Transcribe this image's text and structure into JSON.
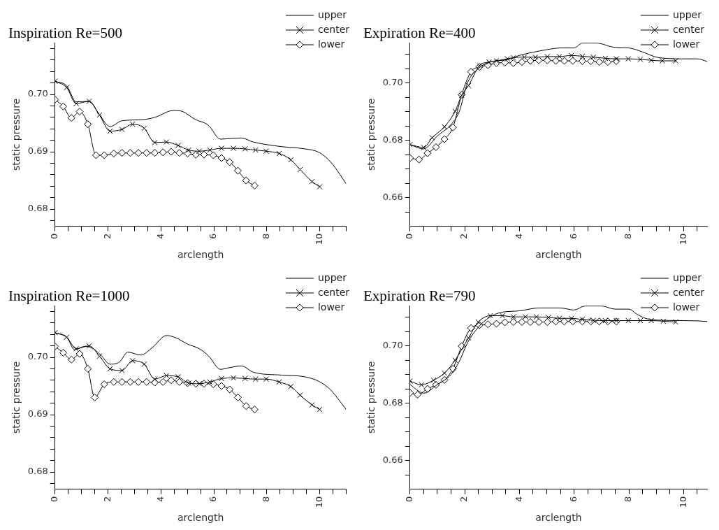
{
  "chart_data": [
    {
      "type": "line",
      "title": "Inspiration Re=500",
      "xlabel": "arclength",
      "ylabel": "static pressure",
      "legend": "top right",
      "xlim": [
        0,
        11
      ],
      "ylim": [
        0.677,
        0.709
      ],
      "xticks": [
        0,
        {
          "value": 0.5,
          "label": null
        },
        {
          "value": 1,
          "label": null
        },
        {
          "value": 1.5,
          "label": null
        },
        2,
        {
          "value": 2.5,
          "label": null
        },
        {
          "value": 3,
          "label": null
        },
        {
          "value": 3.5,
          "label": null
        },
        4,
        {
          "value": 4.5,
          "label": null
        },
        {
          "value": 5,
          "label": null
        },
        {
          "value": 5.5,
          "label": null
        },
        6,
        {
          "value": 6.5,
          "label": null
        },
        {
          "value": 7,
          "label": null
        },
        {
          "value": 7.5,
          "label": null
        },
        8,
        {
          "value": 8.5,
          "label": null
        },
        {
          "value": 9,
          "label": null
        },
        {
          "value": 9.5,
          "label": null
        },
        10,
        {
          "value": 10.5,
          "label": null
        },
        {
          "value": 11,
          "label": null
        }
      ],
      "yticks": [
        {
          "value": 0.678,
          "label": null
        },
        0.68,
        {
          "value": 0.682,
          "label": null
        },
        {
          "value": 0.684,
          "label": null
        },
        {
          "value": 0.686,
          "label": null
        },
        {
          "value": 0.688,
          "label": null
        },
        0.69,
        {
          "value": 0.692,
          "label": null
        },
        {
          "value": 0.694,
          "label": null
        },
        {
          "value": 0.696,
          "label": null
        },
        {
          "value": 0.698,
          "label": null
        },
        {
          "value": 0.7,
          "label": "0.70"
        },
        {
          "value": 0.702,
          "label": null
        },
        {
          "value": 0.704,
          "label": null
        },
        {
          "value": 0.706,
          "label": null
        },
        {
          "value": 0.708,
          "label": null
        }
      ],
      "series": [
        {
          "name": "upper",
          "color": "#000000",
          "marker": "none",
          "x": [
            0,
            0.44,
            0.8,
            1.29,
            1.64,
            2.08,
            2.53,
            3.32,
            3.77,
            4.48,
            4.83,
            5.27,
            5.8,
            6.25,
            6.6,
            7.04,
            7.49,
            8.55,
            9.44,
            9.97,
            10.42,
            10.77,
            11
          ],
          "values": [
            0.7023,
            0.7015,
            0.6987,
            0.6988,
            0.6967,
            0.6944,
            0.6954,
            0.6956,
            0.696,
            0.6972,
            0.697,
            0.6957,
            0.6946,
            0.6922,
            0.6923,
            0.6924,
            0.6917,
            0.6909,
            0.6905,
            0.6899,
            0.6882,
            0.686,
            0.6844
          ]
        },
        {
          "name": "center",
          "color": "#000000",
          "marker": "cross",
          "x": [
            0,
            0.44,
            0.8,
            1.29,
            1.68,
            2.08,
            2.53,
            2.93,
            3.37,
            3.77,
            4.21,
            4.65,
            5.05,
            5.45,
            5.85,
            6.29,
            6.74,
            7.18,
            7.58,
            7.98,
            8.47,
            8.91,
            9.26,
            9.71,
            10
          ],
          "values": [
            0.7023,
            0.7012,
            0.6984,
            0.6988,
            0.6964,
            0.6936,
            0.6939,
            0.6948,
            0.6941,
            0.6916,
            0.6917,
            0.6911,
            0.6903,
            0.6901,
            0.6903,
            0.6906,
            0.6906,
            0.6905,
            0.6903,
            0.6901,
            0.6897,
            0.6886,
            0.6869,
            0.6848,
            0.6839
          ]
        },
        {
          "name": "lower",
          "color": "#000000",
          "marker": "diamond",
          "x": [
            0,
            0.31,
            0.62,
            0.93,
            1.24,
            1.55,
            1.86,
            2.22,
            2.53,
            2.84,
            3.15,
            3.46,
            3.77,
            4.08,
            4.39,
            4.7,
            5.01,
            5.32,
            5.63,
            5.98,
            6.29,
            6.6,
            6.91,
            7.22,
            7.54
          ],
          "values": [
            0.6991,
            0.6979,
            0.6959,
            0.697,
            0.6948,
            0.6894,
            0.6894,
            0.6897,
            0.6898,
            0.6898,
            0.6898,
            0.6898,
            0.6898,
            0.6899,
            0.69,
            0.6898,
            0.6897,
            0.6895,
            0.6895,
            0.6894,
            0.6889,
            0.6882,
            0.6867,
            0.685,
            0.6841
          ]
        }
      ]
    },
    {
      "type": "line",
      "title": "Expiration Re=400",
      "xlabel": "arclength",
      "ylabel": "static pressure",
      "legend": "top right",
      "xlim": [
        0,
        10.86
      ],
      "ylim": [
        0.65,
        0.714
      ],
      "xticks": [
        0,
        {
          "value": 0.5,
          "label": null
        },
        {
          "value": 1,
          "label": null
        },
        {
          "value": 1.5,
          "label": null
        },
        2,
        {
          "value": 2.5,
          "label": null
        },
        {
          "value": 3,
          "label": null
        },
        {
          "value": 3.5,
          "label": null
        },
        4,
        {
          "value": 4.5,
          "label": null
        },
        {
          "value": 5,
          "label": null
        },
        {
          "value": 5.5,
          "label": null
        },
        6,
        {
          "value": 6.5,
          "label": null
        },
        {
          "value": 7,
          "label": null
        },
        {
          "value": 7.5,
          "label": null
        },
        8,
        {
          "value": 8.5,
          "label": null
        },
        {
          "value": 9,
          "label": null
        },
        {
          "value": 9.5,
          "label": null
        },
        10,
        {
          "value": 10.5,
          "label": null
        }
      ],
      "yticks": [
        {
          "value": 0.655,
          "label": null
        },
        0.66,
        {
          "value": 0.665,
          "label": null
        },
        {
          "value": 0.67,
          "label": null
        },
        {
          "value": 0.675,
          "label": null
        },
        0.68,
        {
          "value": 0.685,
          "label": null
        },
        {
          "value": 0.69,
          "label": null
        },
        {
          "value": 0.695,
          "label": null
        },
        {
          "value": 0.7,
          "label": "0.70"
        },
        {
          "value": 0.705,
          "label": null
        },
        {
          "value": 0.71,
          "label": null
        }
      ],
      "series": [
        {
          "name": "upper",
          "color": "#000000",
          "marker": "none",
          "x": [
            0,
            0.5,
            1,
            1.5,
            1.8,
            2.1,
            2.5,
            3,
            3.5,
            4,
            4.5,
            5,
            5.5,
            6,
            6.3,
            6.8,
            7.5,
            8,
            8.5,
            9,
            9.5,
            10,
            10.5,
            10.86
          ],
          "values": [
            0.6785,
            0.677,
            0.6815,
            0.6855,
            0.69,
            0.7,
            0.705,
            0.7075,
            0.708,
            0.7096,
            0.7107,
            0.7116,
            0.7122,
            0.7122,
            0.7139,
            0.7139,
            0.7124,
            0.7122,
            0.7108,
            0.709,
            0.7085,
            0.7084,
            0.7084,
            0.7075
          ]
        },
        {
          "name": "center",
          "color": "#000000",
          "marker": "cross",
          "x": [
            0,
            0.5,
            0.81,
            1.26,
            1.65,
            1.89,
            2.14,
            2.54,
            2.89,
            3.16,
            3.56,
            3.78,
            4.18,
            4.58,
            5.02,
            5.46,
            5.9,
            6.3,
            6.7,
            7.14,
            7.54,
            7.98,
            8.42,
            8.82,
            9.22,
            9.71
          ],
          "values": [
            0.6785,
            0.6775,
            0.6809,
            0.6847,
            0.6901,
            0.6957,
            0.6991,
            0.706,
            0.7073,
            0.7077,
            0.7084,
            0.7088,
            0.709,
            0.709,
            0.7092,
            0.7092,
            0.7096,
            0.7093,
            0.709,
            0.7086,
            0.7084,
            0.7084,
            0.7082,
            0.7079,
            0.7077,
            0.7077
          ]
        },
        {
          "name": "lower",
          "color": "#000000",
          "marker": "diamond",
          "x": [
            0,
            0.33,
            0.64,
            0.95,
            1.26,
            1.57,
            1.89,
            2.23,
            2.54,
            2.85,
            3.16,
            3.47,
            3.78,
            4.09,
            4.4,
            4.71,
            5.02,
            5.33,
            5.64,
            5.95,
            6.3,
            6.61,
            6.92,
            7.23,
            7.54
          ],
          "values": [
            0.6738,
            0.6733,
            0.6755,
            0.6776,
            0.6804,
            0.6845,
            0.6959,
            0.7039,
            0.7056,
            0.7062,
            0.7069,
            0.7071,
            0.7069,
            0.7073,
            0.7077,
            0.7079,
            0.7079,
            0.7077,
            0.7077,
            0.7077,
            0.7076,
            0.7076,
            0.7073,
            0.7073,
            0.7076
          ]
        }
      ]
    },
    {
      "type": "line",
      "title": "Inspiration Re=1000",
      "xlabel": "arclength",
      "ylabel": "static pressure",
      "legend": "top right",
      "xlim": [
        0,
        11
      ],
      "ylim": [
        0.677,
        0.709
      ],
      "xticks": [
        0,
        {
          "value": 0.5,
          "label": null
        },
        {
          "value": 1,
          "label": null
        },
        {
          "value": 1.5,
          "label": null
        },
        2,
        {
          "value": 2.5,
          "label": null
        },
        {
          "value": 3,
          "label": null
        },
        {
          "value": 3.5,
          "label": null
        },
        4,
        {
          "value": 4.5,
          "label": null
        },
        {
          "value": 5,
          "label": null
        },
        {
          "value": 5.5,
          "label": null
        },
        6,
        {
          "value": 6.5,
          "label": null
        },
        {
          "value": 7,
          "label": null
        },
        {
          "value": 7.5,
          "label": null
        },
        8,
        {
          "value": 8.5,
          "label": null
        },
        {
          "value": 9,
          "label": null
        },
        {
          "value": 9.5,
          "label": null
        },
        10,
        {
          "value": 10.5,
          "label": null
        },
        {
          "value": 11,
          "label": null
        }
      ],
      "yticks": [
        {
          "value": 0.678,
          "label": null
        },
        0.68,
        {
          "value": 0.682,
          "label": null
        },
        {
          "value": 0.684,
          "label": null
        },
        {
          "value": 0.686,
          "label": null
        },
        {
          "value": 0.688,
          "label": null
        },
        0.69,
        {
          "value": 0.692,
          "label": null
        },
        {
          "value": 0.694,
          "label": null
        },
        {
          "value": 0.696,
          "label": null
        },
        {
          "value": 0.698,
          "label": null
        },
        {
          "value": 0.7,
          "label": "0.70"
        },
        {
          "value": 0.702,
          "label": null
        },
        {
          "value": 0.704,
          "label": null
        },
        {
          "value": 0.706,
          "label": null
        },
        {
          "value": 0.708,
          "label": null
        }
      ],
      "series": [
        {
          "name": "upper",
          "color": "#000000",
          "marker": "none",
          "x": [
            0,
            0.44,
            0.75,
            1.11,
            1.37,
            1.73,
            2.08,
            2.44,
            2.75,
            3.24,
            3.68,
            4.21,
            4.57,
            5.01,
            5.45,
            5.81,
            6.25,
            6.6,
            7.04,
            7.49,
            8.55,
            9.44,
            9.97,
            10.42,
            10.77,
            11
          ],
          "values": [
            0.7043,
            0.7035,
            0.7013,
            0.7019,
            0.7017,
            0.7004,
            0.6988,
            0.6992,
            0.7009,
            0.7004,
            0.7017,
            0.7038,
            0.7034,
            0.7023,
            0.7015,
            0.7002,
            0.6979,
            0.6982,
            0.6985,
            0.6974,
            0.6969,
            0.6966,
            0.6958,
            0.6943,
            0.6923,
            0.6909
          ]
        },
        {
          "name": "center",
          "color": "#000000",
          "marker": "cross",
          "x": [
            0,
            0.44,
            0.8,
            1.29,
            1.68,
            2.08,
            2.53,
            2.93,
            3.37,
            3.77,
            4.21,
            4.65,
            5.05,
            5.45,
            5.85,
            6.29,
            6.74,
            7.18,
            7.58,
            7.98,
            8.47,
            8.91,
            9.26,
            9.71,
            10
          ],
          "values": [
            0.7043,
            0.7035,
            0.7015,
            0.702,
            0.7002,
            0.698,
            0.6977,
            0.6994,
            0.6988,
            0.6962,
            0.6968,
            0.6966,
            0.6955,
            0.6954,
            0.6957,
            0.6963,
            0.6964,
            0.6963,
            0.6962,
            0.6962,
            0.6957,
            0.6949,
            0.6934,
            0.6917,
            0.6909
          ]
        },
        {
          "name": "lower",
          "color": "#000000",
          "marker": "diamond",
          "x": [
            0,
            0.31,
            0.62,
            0.93,
            1.24,
            1.5,
            1.86,
            2.22,
            2.53,
            2.84,
            3.15,
            3.46,
            3.77,
            4.08,
            4.39,
            4.7,
            5.01,
            5.32,
            5.63,
            5.98,
            6.29,
            6.6,
            6.91,
            7.22,
            7.54
          ],
          "values": [
            0.7019,
            0.7008,
            0.6996,
            0.7006,
            0.698,
            0.693,
            0.6953,
            0.6957,
            0.6957,
            0.6957,
            0.6957,
            0.6957,
            0.6956,
            0.6957,
            0.696,
            0.6957,
            0.6955,
            0.6954,
            0.6954,
            0.6953,
            0.695,
            0.6944,
            0.693,
            0.6915,
            0.6909
          ]
        }
      ]
    },
    {
      "type": "line",
      "title": "Expiration Re=790",
      "xlabel": "arclength",
      "ylabel": "static pressure",
      "legend": "top right",
      "xlim": [
        0,
        10.86
      ],
      "ylim": [
        0.65,
        0.714
      ],
      "xticks": [
        0,
        {
          "value": 0.5,
          "label": null
        },
        {
          "value": 1,
          "label": null
        },
        {
          "value": 1.5,
          "label": null
        },
        2,
        {
          "value": 2.5,
          "label": null
        },
        {
          "value": 3,
          "label": null
        },
        {
          "value": 3.5,
          "label": null
        },
        4,
        {
          "value": 4.5,
          "label": null
        },
        {
          "value": 5,
          "label": null
        },
        {
          "value": 5.5,
          "label": null
        },
        6,
        {
          "value": 6.5,
          "label": null
        },
        {
          "value": 7,
          "label": null
        },
        {
          "value": 7.5,
          "label": null
        },
        8,
        {
          "value": 8.5,
          "label": null
        },
        {
          "value": 9,
          "label": null
        },
        {
          "value": 9.5,
          "label": null
        },
        10,
        {
          "value": 10.5,
          "label": null
        }
      ],
      "yticks": [
        {
          "value": 0.655,
          "label": null
        },
        0.66,
        {
          "value": 0.665,
          "label": null
        },
        {
          "value": 0.67,
          "label": null
        },
        {
          "value": 0.675,
          "label": null
        },
        0.68,
        {
          "value": 0.685,
          "label": null
        },
        {
          "value": 0.69,
          "label": null
        },
        {
          "value": 0.695,
          "label": null
        },
        {
          "value": 0.7,
          "label": "0.70"
        },
        {
          "value": 0.705,
          "label": null
        },
        {
          "value": 0.71,
          "label": null
        }
      ],
      "series": [
        {
          "name": "upper",
          "color": "#000000",
          "marker": "none",
          "x": [
            0,
            0.5,
            1,
            1.5,
            1.8,
            2.1,
            2.5,
            2.9,
            3.3,
            4,
            4.7,
            5.5,
            6,
            6.4,
            7,
            7.5,
            8,
            8.3,
            8.6,
            9,
            10,
            10.5,
            10.86
          ],
          "values": [
            0.6865,
            0.6835,
            0.6865,
            0.69,
            0.6945,
            0.701,
            0.7065,
            0.7099,
            0.7116,
            0.7122,
            0.7132,
            0.7132,
            0.7125,
            0.7139,
            0.7139,
            0.7128,
            0.7128,
            0.711,
            0.7096,
            0.709,
            0.7088,
            0.7087,
            0.7085
          ]
        },
        {
          "name": "center",
          "color": "#000000",
          "marker": "cross",
          "x": [
            0,
            0.42,
            0.86,
            1.26,
            1.65,
            2.14,
            2.5,
            2.94,
            3.38,
            3.78,
            4.22,
            4.62,
            5.06,
            5.46,
            5.9,
            6.3,
            6.7,
            7.14,
            7.54,
            7.98,
            8.42,
            8.82,
            9.26,
            9.71
          ],
          "values": [
            0.6877,
            0.6864,
            0.688,
            0.6905,
            0.695,
            0.7028,
            0.7083,
            0.7105,
            0.7105,
            0.7101,
            0.7101,
            0.7101,
            0.7099,
            0.7096,
            0.7096,
            0.7092,
            0.7089,
            0.7088,
            0.7088,
            0.7088,
            0.7088,
            0.7088,
            0.7086,
            0.7083
          ]
        },
        {
          "name": "lower",
          "color": "#000000",
          "marker": "diamond",
          "x": [
            0,
            0.28,
            0.64,
            0.95,
            1.26,
            1.57,
            1.89,
            2.23,
            2.54,
            2.85,
            3.16,
            3.47,
            3.78,
            4.09,
            4.4,
            4.71,
            5.02,
            5.33,
            5.64,
            5.95,
            6.3,
            6.61,
            6.92,
            7.23,
            7.54
          ],
          "values": [
            0.6836,
            0.683,
            0.685,
            0.6864,
            0.6881,
            0.692,
            0.6999,
            0.7062,
            0.7072,
            0.7075,
            0.7077,
            0.7082,
            0.7083,
            0.7083,
            0.7083,
            0.7083,
            0.7083,
            0.7085,
            0.7085,
            0.7085,
            0.7085,
            0.7085,
            0.7085,
            0.7085,
            0.7085
          ]
        }
      ]
    }
  ]
}
